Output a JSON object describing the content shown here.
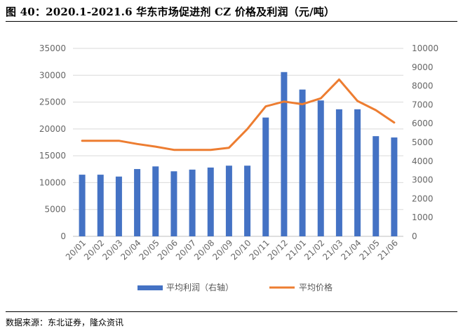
{
  "header": {
    "title": "图 40：2020.1-2021.6 华东市场促进剂 CZ 价格及利润（元/吨）"
  },
  "footer": {
    "source": "数据来源：东北证券，隆众资讯"
  },
  "chart_data": {
    "type": "bar+line",
    "title": "图 40：2020.1-2021.6 华东市场促进剂 CZ 价格及利润（元/吨）",
    "categories": [
      "20/01",
      "20/02",
      "20/03",
      "20/04",
      "20/05",
      "20/06",
      "20/07",
      "20/08",
      "20/09",
      "20/10",
      "20/11",
      "20/12",
      "21/01",
      "21/02",
      "21/03",
      "21/04",
      "21/05",
      "21/06"
    ],
    "series": [
      {
        "name": "平均利润（右轴）",
        "kind": "bar",
        "axis": "right",
        "color": "#4472C4",
        "values": [
          3280,
          3280,
          3180,
          3580,
          3720,
          3460,
          3550,
          3660,
          3760,
          3760,
          6320,
          8740,
          7810,
          7230,
          6760,
          6760,
          5330,
          5260
        ]
      },
      {
        "name": "平均价格",
        "kind": "line",
        "axis": "left",
        "color": "#ED7D31",
        "values": [
          17800,
          17800,
          17800,
          17200,
          16700,
          16100,
          16100,
          16100,
          16500,
          20000,
          24200,
          25100,
          24600,
          25700,
          29200,
          25200,
          23500,
          21200
        ]
      }
    ],
    "y_left": {
      "min": 0,
      "max": 35000,
      "step": 5000,
      "ticks": [
        "0",
        "5000",
        "10000",
        "15000",
        "20000",
        "25000",
        "30000",
        "35000"
      ]
    },
    "y_right": {
      "min": 0,
      "max": 10000,
      "step": 1000,
      "ticks": [
        "0",
        "1000",
        "2000",
        "3000",
        "4000",
        "5000",
        "6000",
        "7000",
        "8000",
        "9000",
        "10000"
      ]
    },
    "grid": true,
    "legend_position": "bottom"
  }
}
